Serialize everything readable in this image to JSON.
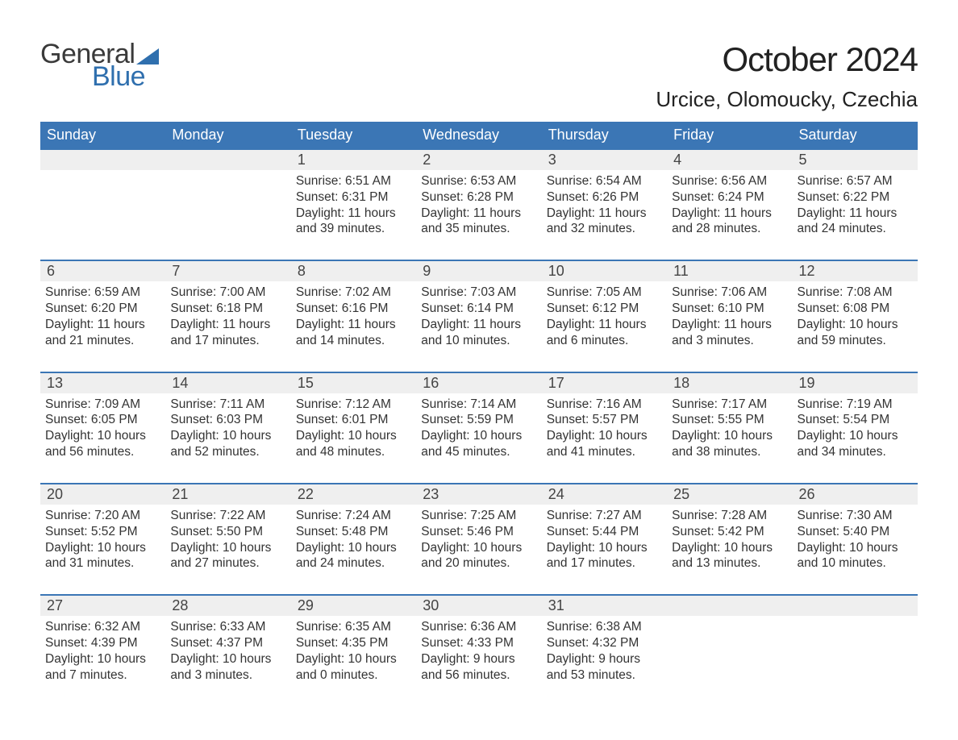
{
  "brand": {
    "word1": "General",
    "word2": "Blue",
    "accent_color": "#2f6fae"
  },
  "title": "October 2024",
  "location": "Urcice, Olomoucky, Czechia",
  "colors": {
    "header_bg": "#3b76b5",
    "header_text": "#ffffff",
    "daynum_bg": "#efefef",
    "rule": "#3b76b5",
    "body_text": "#333333",
    "page_bg": "#ffffff"
  },
  "day_headers": [
    "Sunday",
    "Monday",
    "Tuesday",
    "Wednesday",
    "Thursday",
    "Friday",
    "Saturday"
  ],
  "weeks": [
    {
      "nums": [
        "",
        "",
        "1",
        "2",
        "3",
        "4",
        "5"
      ],
      "cells": [
        {},
        {},
        {
          "sunrise": "6:51 AM",
          "sunset": "6:31 PM",
          "daylight": "11 hours and 39 minutes."
        },
        {
          "sunrise": "6:53 AM",
          "sunset": "6:28 PM",
          "daylight": "11 hours and 35 minutes."
        },
        {
          "sunrise": "6:54 AM",
          "sunset": "6:26 PM",
          "daylight": "11 hours and 32 minutes."
        },
        {
          "sunrise": "6:56 AM",
          "sunset": "6:24 PM",
          "daylight": "11 hours and 28 minutes."
        },
        {
          "sunrise": "6:57 AM",
          "sunset": "6:22 PM",
          "daylight": "11 hours and 24 minutes."
        }
      ]
    },
    {
      "nums": [
        "6",
        "7",
        "8",
        "9",
        "10",
        "11",
        "12"
      ],
      "cells": [
        {
          "sunrise": "6:59 AM",
          "sunset": "6:20 PM",
          "daylight": "11 hours and 21 minutes."
        },
        {
          "sunrise": "7:00 AM",
          "sunset": "6:18 PM",
          "daylight": "11 hours and 17 minutes."
        },
        {
          "sunrise": "7:02 AM",
          "sunset": "6:16 PM",
          "daylight": "11 hours and 14 minutes."
        },
        {
          "sunrise": "7:03 AM",
          "sunset": "6:14 PM",
          "daylight": "11 hours and 10 minutes."
        },
        {
          "sunrise": "7:05 AM",
          "sunset": "6:12 PM",
          "daylight": "11 hours and 6 minutes."
        },
        {
          "sunrise": "7:06 AM",
          "sunset": "6:10 PM",
          "daylight": "11 hours and 3 minutes."
        },
        {
          "sunrise": "7:08 AM",
          "sunset": "6:08 PM",
          "daylight": "10 hours and 59 minutes."
        }
      ]
    },
    {
      "nums": [
        "13",
        "14",
        "15",
        "16",
        "17",
        "18",
        "19"
      ],
      "cells": [
        {
          "sunrise": "7:09 AM",
          "sunset": "6:05 PM",
          "daylight": "10 hours and 56 minutes."
        },
        {
          "sunrise": "7:11 AM",
          "sunset": "6:03 PM",
          "daylight": "10 hours and 52 minutes."
        },
        {
          "sunrise": "7:12 AM",
          "sunset": "6:01 PM",
          "daylight": "10 hours and 48 minutes."
        },
        {
          "sunrise": "7:14 AM",
          "sunset": "5:59 PM",
          "daylight": "10 hours and 45 minutes."
        },
        {
          "sunrise": "7:16 AM",
          "sunset": "5:57 PM",
          "daylight": "10 hours and 41 minutes."
        },
        {
          "sunrise": "7:17 AM",
          "sunset": "5:55 PM",
          "daylight": "10 hours and 38 minutes."
        },
        {
          "sunrise": "7:19 AM",
          "sunset": "5:54 PM",
          "daylight": "10 hours and 34 minutes."
        }
      ]
    },
    {
      "nums": [
        "20",
        "21",
        "22",
        "23",
        "24",
        "25",
        "26"
      ],
      "cells": [
        {
          "sunrise": "7:20 AM",
          "sunset": "5:52 PM",
          "daylight": "10 hours and 31 minutes."
        },
        {
          "sunrise": "7:22 AM",
          "sunset": "5:50 PM",
          "daylight": "10 hours and 27 minutes."
        },
        {
          "sunrise": "7:24 AM",
          "sunset": "5:48 PM",
          "daylight": "10 hours and 24 minutes."
        },
        {
          "sunrise": "7:25 AM",
          "sunset": "5:46 PM",
          "daylight": "10 hours and 20 minutes."
        },
        {
          "sunrise": "7:27 AM",
          "sunset": "5:44 PM",
          "daylight": "10 hours and 17 minutes."
        },
        {
          "sunrise": "7:28 AM",
          "sunset": "5:42 PM",
          "daylight": "10 hours and 13 minutes."
        },
        {
          "sunrise": "7:30 AM",
          "sunset": "5:40 PM",
          "daylight": "10 hours and 10 minutes."
        }
      ]
    },
    {
      "nums": [
        "27",
        "28",
        "29",
        "30",
        "31",
        "",
        ""
      ],
      "cells": [
        {
          "sunrise": "6:32 AM",
          "sunset": "4:39 PM",
          "daylight": "10 hours and 7 minutes."
        },
        {
          "sunrise": "6:33 AM",
          "sunset": "4:37 PM",
          "daylight": "10 hours and 3 minutes."
        },
        {
          "sunrise": "6:35 AM",
          "sunset": "4:35 PM",
          "daylight": "10 hours and 0 minutes."
        },
        {
          "sunrise": "6:36 AM",
          "sunset": "4:33 PM",
          "daylight": "9 hours and 56 minutes."
        },
        {
          "sunrise": "6:38 AM",
          "sunset": "4:32 PM",
          "daylight": "9 hours and 53 minutes."
        },
        {},
        {}
      ]
    }
  ],
  "labels": {
    "sunrise": "Sunrise: ",
    "sunset": "Sunset: ",
    "daylight": "Daylight: "
  }
}
